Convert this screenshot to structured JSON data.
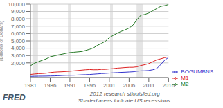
{
  "chart_data": {
    "type": "line",
    "ylabel": "(Billions of Dollars)",
    "x": [
      1981,
      1982,
      1983,
      1984,
      1985,
      1986,
      1987,
      1988,
      1989,
      1990,
      1991,
      1992,
      1993,
      1994,
      1995,
      1996,
      1997,
      1998,
      1999,
      2000,
      2001,
      2002,
      2003,
      2004,
      2005,
      2006,
      2007,
      2008,
      2009,
      2010,
      2011,
      2012,
      2013,
      2014,
      2015,
      2016
    ],
    "series": [
      {
        "name": "BOGUMBNS",
        "color": "#3333cc",
        "values": [
          160,
          175,
          188,
          192,
          198,
          215,
          225,
          245,
          280,
          300,
          308,
          312,
          342,
          372,
          392,
          418,
          455,
          495,
          535,
          565,
          605,
          645,
          675,
          705,
          725,
          755,
          785,
          860,
          910,
          925,
          960,
          1060,
          1220,
          1750,
          2350,
          2750
        ]
      },
      {
        "name": "M1",
        "color": "#dd2222",
        "values": [
          420,
          480,
          525,
          545,
          590,
          680,
          730,
          765,
          785,
          820,
          855,
          910,
          960,
          1010,
          1060,
          1090,
          1060,
          1065,
          1110,
          1110,
          1170,
          1220,
          1280,
          1320,
          1365,
          1395,
          1400,
          1460,
          1640,
          1750,
          1900,
          2150,
          2400,
          2550,
          2700,
          2820
        ]
      },
      {
        "name": "M2",
        "color": "#227722",
        "values": [
          1600,
          1950,
          2150,
          2350,
          2550,
          2820,
          2950,
          3080,
          3180,
          3300,
          3400,
          3450,
          3500,
          3550,
          3700,
          3850,
          4050,
          4400,
          4650,
          4950,
          5450,
          5750,
          6050,
          6300,
          6500,
          6750,
          7150,
          7900,
          8500,
          8600,
          8800,
          9100,
          9400,
          9700,
          9800,
          9950
        ]
      }
    ],
    "xlim": [
      1981,
      2016
    ],
    "ylim": [
      0,
      10000
    ],
    "xticks": [
      1981,
      1986,
      1991,
      1996,
      2001,
      2006,
      2011,
      2016
    ],
    "yticks": [
      {
        "value": 2000,
        "label": "2,000"
      },
      {
        "value": 3000,
        "label": "3,000"
      },
      {
        "value": 4000,
        "label": "4,000"
      },
      {
        "value": 5000,
        "label": "5,000"
      },
      {
        "value": 6000,
        "label": "6,000"
      },
      {
        "value": 7000,
        "label": "7,000"
      },
      {
        "value": 8000,
        "label": "8,000"
      },
      {
        "value": 9000,
        "label": "9,000"
      },
      {
        "value": 10000,
        "label": "10,000"
      }
    ],
    "recession_bands": [
      [
        1981.5,
        1982.9
      ],
      [
        1990.5,
        1991.2
      ],
      [
        2001.2,
        2001.9
      ],
      [
        2007.9,
        2009.5
      ]
    ],
    "grid": "y",
    "legend": "lower right",
    "annotations": [
      "2012 research stlouisfed.org",
      "Shaded areas indicate US recessions.",
      "FRED"
    ]
  }
}
